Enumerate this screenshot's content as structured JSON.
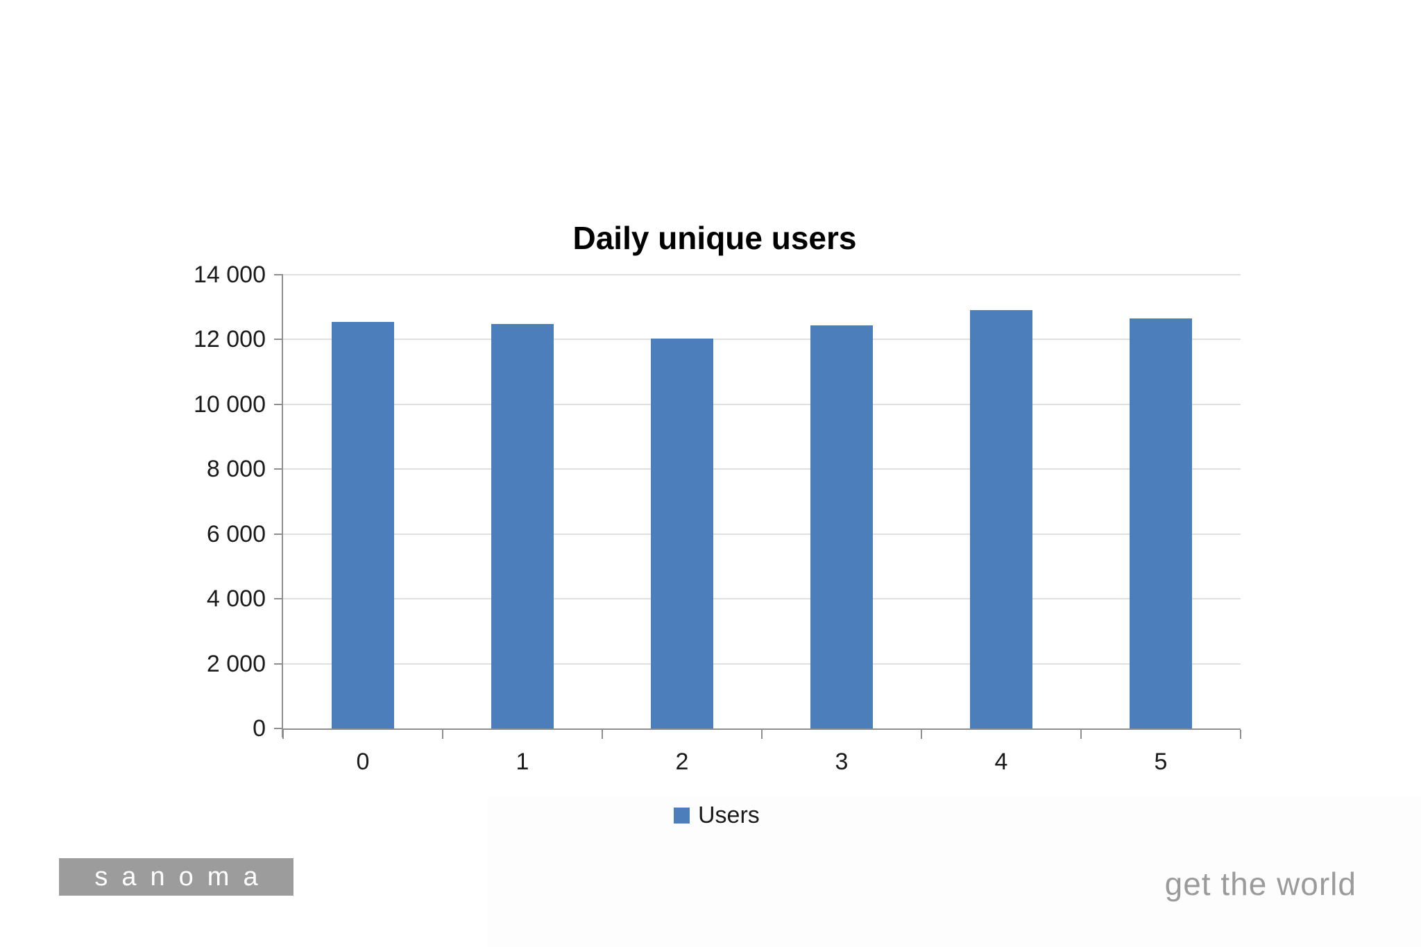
{
  "slide": {
    "footer": {
      "logo_text": "sanoma",
      "tagline": "get the world"
    }
  },
  "chart_data": {
    "type": "bar",
    "title": "Daily unique users",
    "categories": [
      "0",
      "1",
      "2",
      "3",
      "4",
      "5"
    ],
    "series": [
      {
        "name": "Users",
        "values": [
          12550,
          12480,
          12030,
          12440,
          12900,
          12650
        ]
      }
    ],
    "xlabel": "",
    "ylabel": "",
    "ylim": [
      0,
      14000
    ],
    "ytick_interval": 2000,
    "ytick_labels": [
      "0",
      "2 000",
      "4 000",
      "6 000",
      "8 000",
      "10 000",
      "12 000",
      "14 000"
    ],
    "grid": true,
    "legend_position": "bottom"
  },
  "colors": {
    "bar": "#4D7EBC",
    "gridline": "#E0E0E0",
    "axis": "#8E8E8E",
    "label_text": "#1A1A1A",
    "title_text": "#000000",
    "logo_bg": "#9C9C9C",
    "logo_text_color": "#FFFFFF",
    "tagline_text": "#9B9B9B",
    "panel_bg": "#FDFDFD"
  }
}
